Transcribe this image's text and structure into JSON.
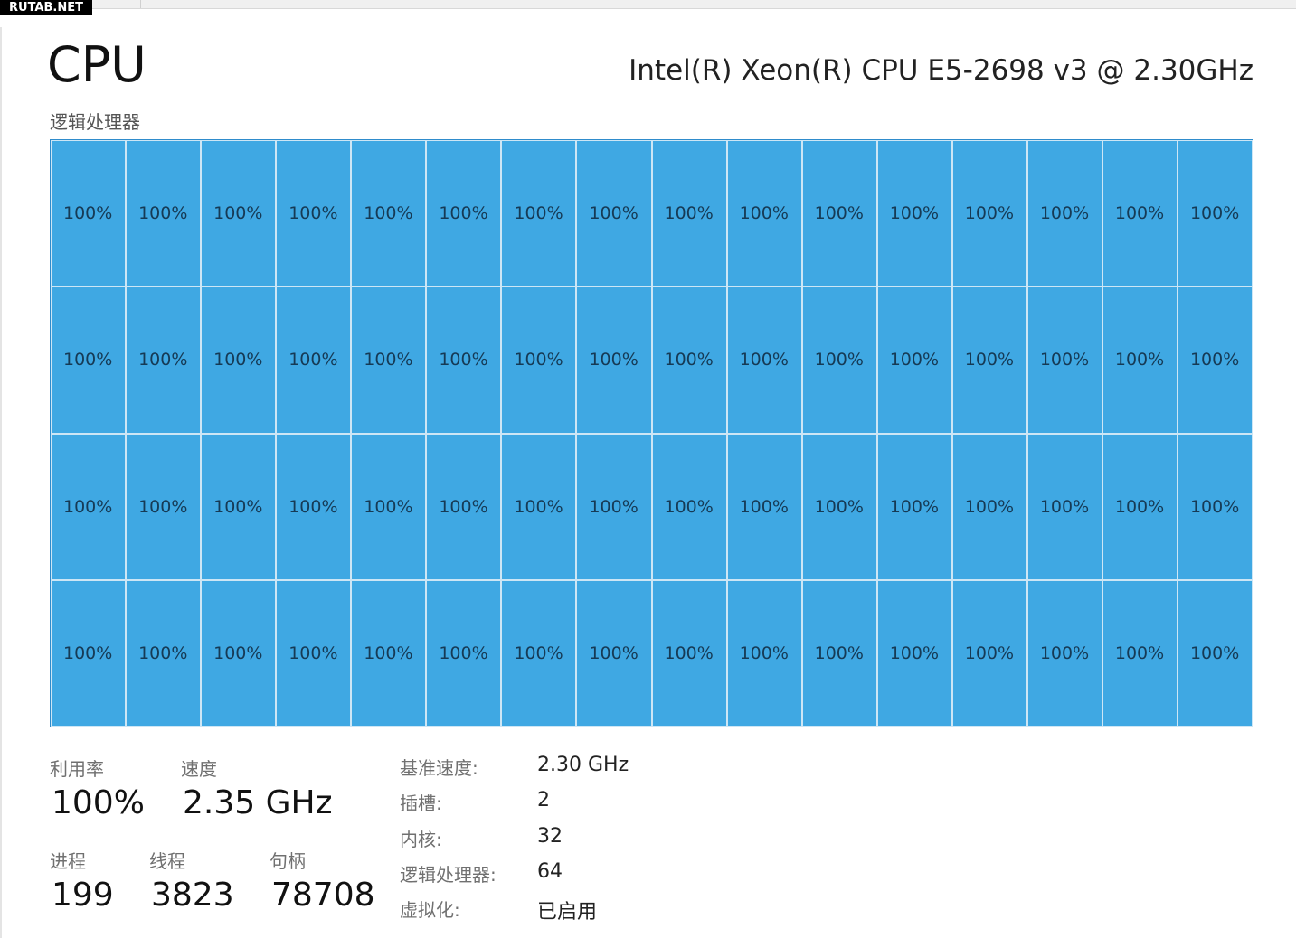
{
  "watermark": "RUTAB.NET",
  "header": {
    "title": "CPU",
    "processor": "Intel(R) Xeon(R) CPU E5-2698 v3 @ 2.30GHz",
    "subtitle": "逻辑处理器"
  },
  "grid": {
    "cells": [
      [
        "100%",
        "100%",
        "100%",
        "100%",
        "100%",
        "100%",
        "100%",
        "100%",
        "100%",
        "100%",
        "100%",
        "100%",
        "100%",
        "100%",
        "100%",
        "100%"
      ],
      [
        "100%",
        "100%",
        "100%",
        "100%",
        "100%",
        "100%",
        "100%",
        "100%",
        "100%",
        "100%",
        "100%",
        "100%",
        "100%",
        "100%",
        "100%",
        "100%"
      ],
      [
        "100%",
        "100%",
        "100%",
        "100%",
        "100%",
        "100%",
        "100%",
        "100%",
        "100%",
        "100%",
        "100%",
        "100%",
        "100%",
        "100%",
        "100%",
        "100%"
      ],
      [
        "100%",
        "100%",
        "100%",
        "100%",
        "100%",
        "100%",
        "100%",
        "100%",
        "100%",
        "100%",
        "100%",
        "100%",
        "100%",
        "100%",
        "100%",
        "100%"
      ]
    ]
  },
  "stats": {
    "utilization": {
      "label": "利用率",
      "value": "100%"
    },
    "speed": {
      "label": "速度",
      "value": "2.35 GHz"
    },
    "processes": {
      "label": "进程",
      "value": "199"
    },
    "threads": {
      "label": "线程",
      "value": "3823"
    },
    "handles": {
      "label": "句柄",
      "value": "78708"
    }
  },
  "details": [
    {
      "label": "基准速度:",
      "value": "2.30 GHz"
    },
    {
      "label": "插槽:",
      "value": "2"
    },
    {
      "label": "内核:",
      "value": "32"
    },
    {
      "label": "逻辑处理器:",
      "value": "64"
    },
    {
      "label": "虚拟化:",
      "value": "已启用"
    }
  ]
}
